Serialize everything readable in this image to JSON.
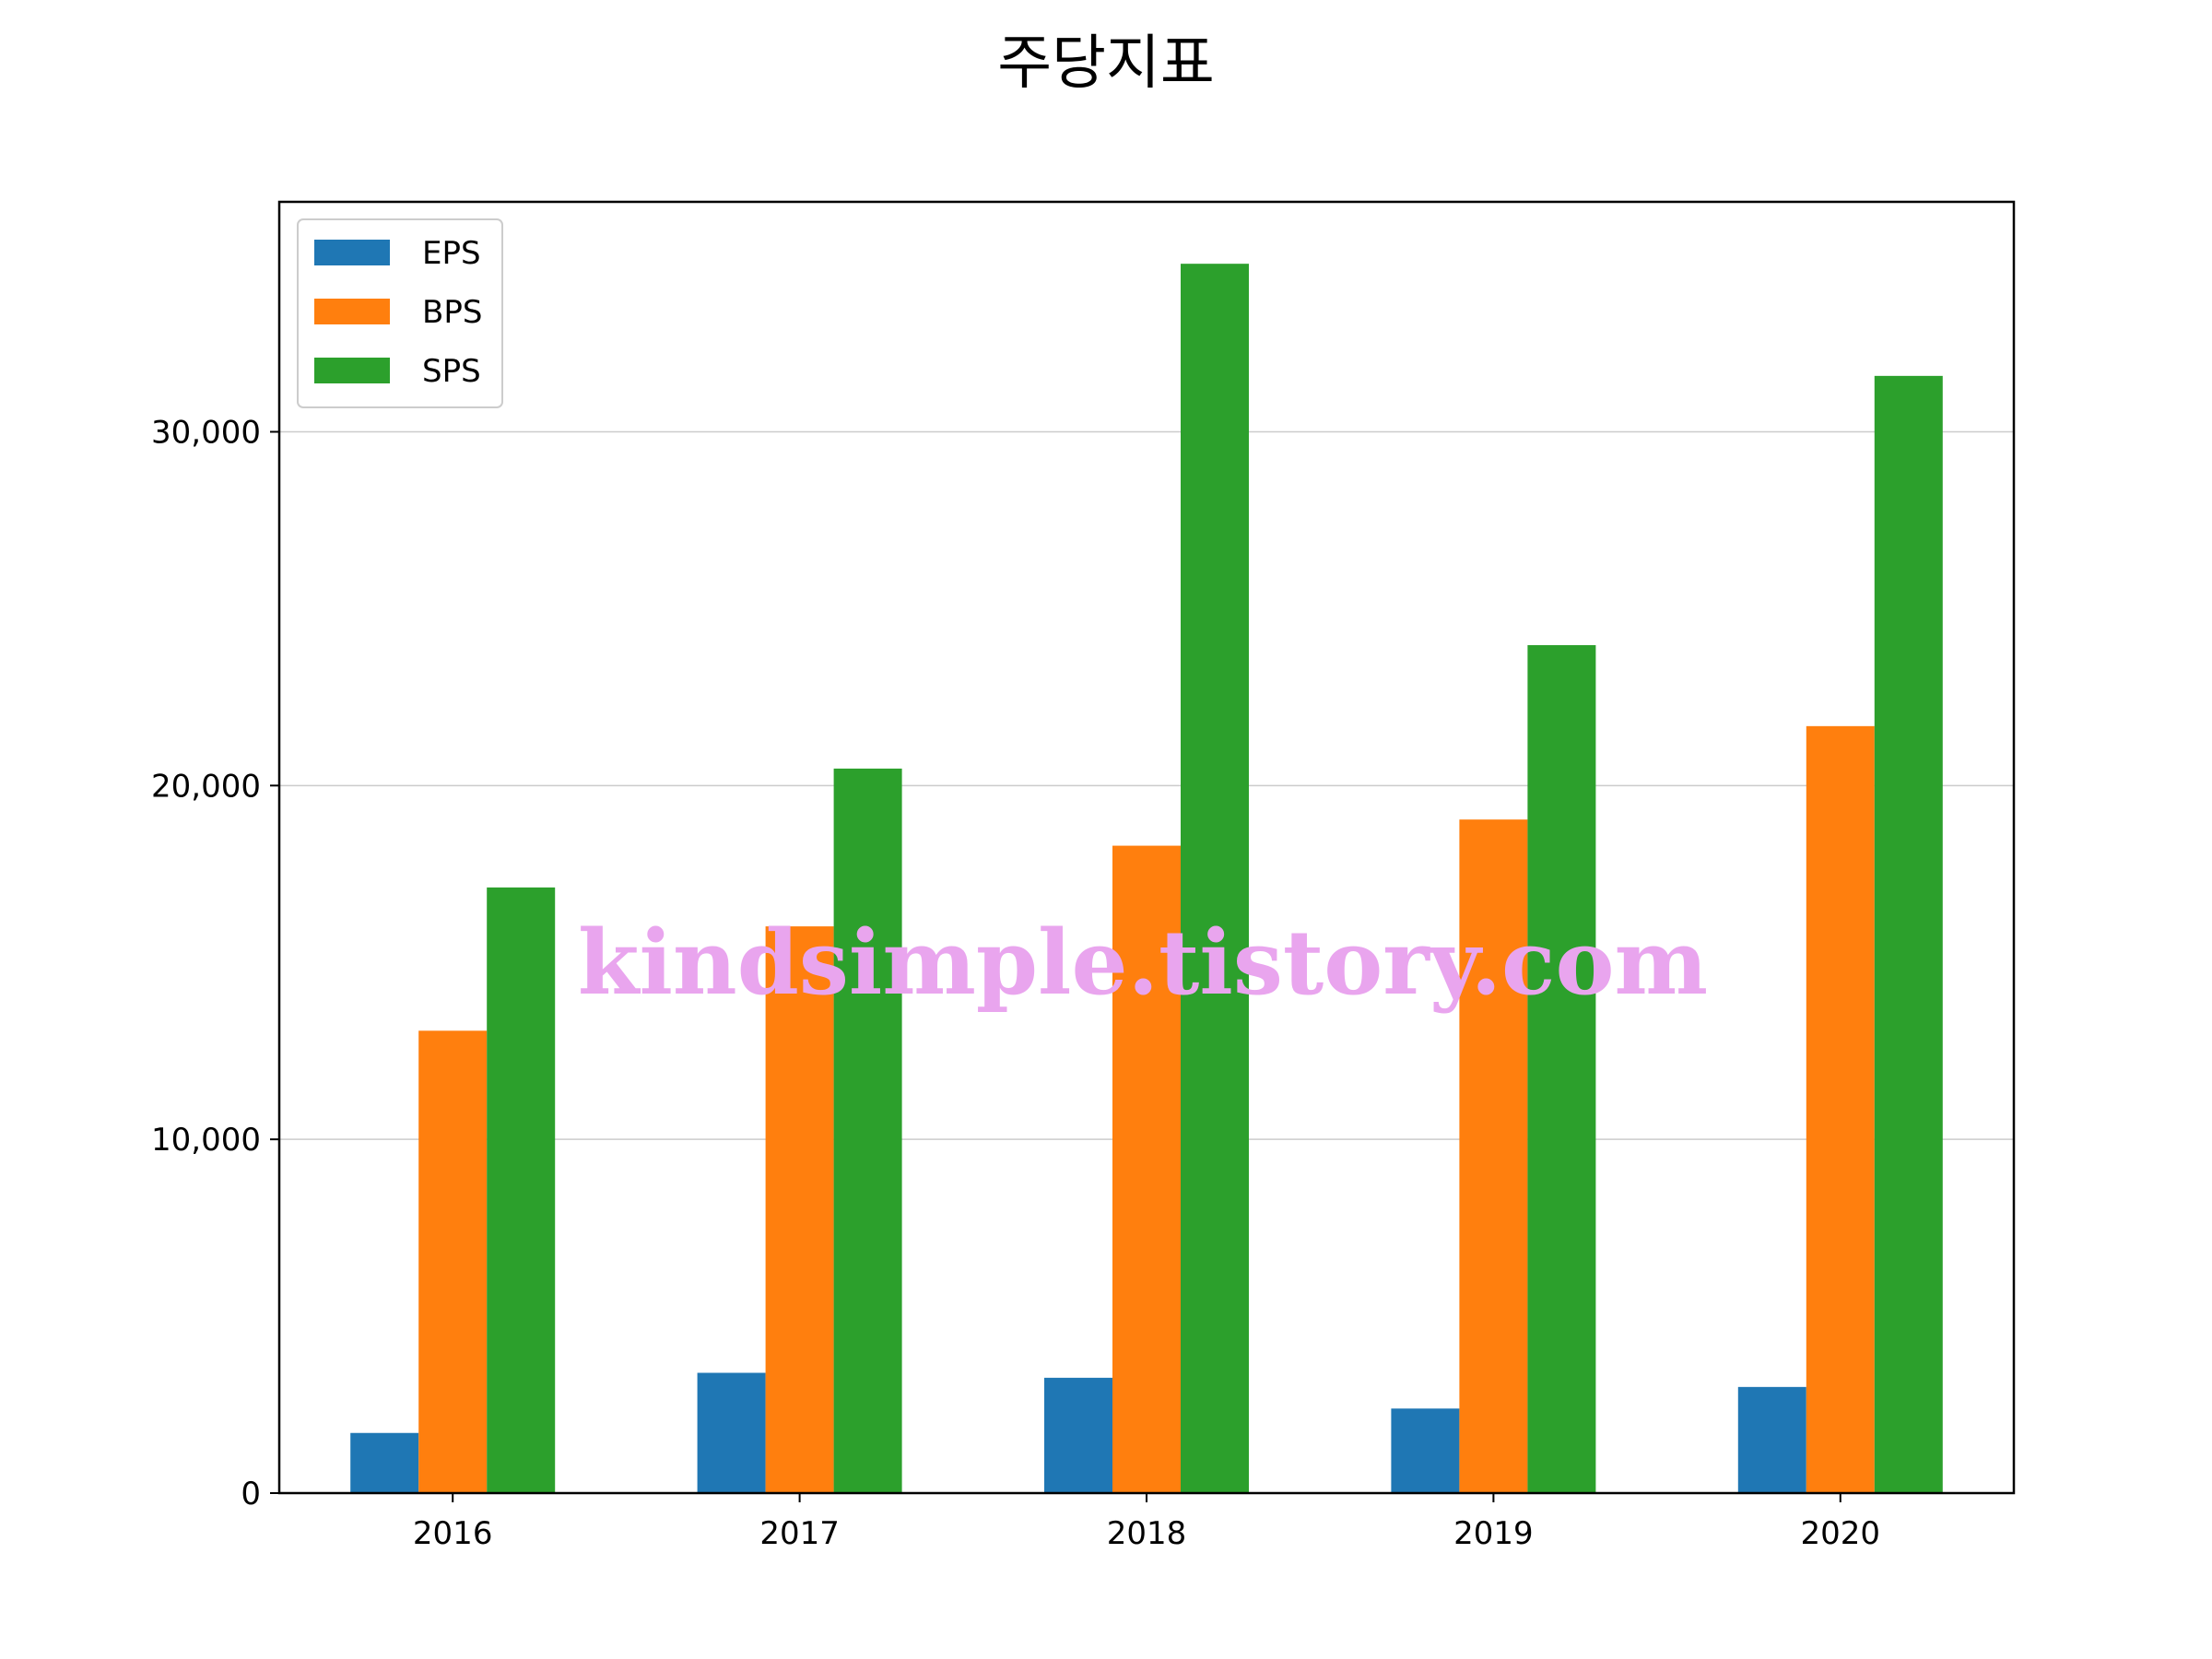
{
  "chart_data": {
    "type": "bar",
    "title": "주당지표",
    "xlabel": "",
    "ylabel": "",
    "categories": [
      "2016",
      "2017",
      "2018",
      "2019",
      "2020"
    ],
    "series": [
      {
        "name": "EPS",
        "color": "#1f77b4",
        "values": [
          1700,
          3400,
          3260,
          2390,
          3000
        ]
      },
      {
        "name": "BPS",
        "color": "#ff7f0e",
        "values": [
          13070,
          16020,
          18300,
          19040,
          21680
        ]
      },
      {
        "name": "SPS",
        "color": "#2ca02c",
        "values": [
          17120,
          20480,
          34750,
          23970,
          31580
        ]
      }
    ],
    "ylim": [
      0,
      36500
    ],
    "yticks": [
      0,
      10000,
      20000,
      30000
    ],
    "ytick_labels": [
      "0",
      "10,000",
      "20,000",
      "30,000"
    ],
    "grid": "y",
    "legend_position": "upper-left"
  },
  "watermark": "kindsimple.tistory.com"
}
